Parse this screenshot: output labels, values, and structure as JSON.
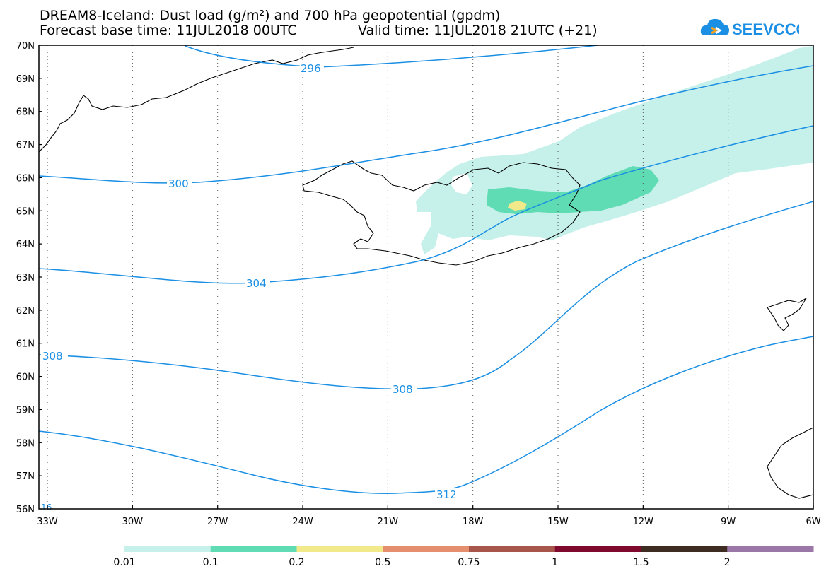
{
  "title": {
    "line1": "DREAM8-Iceland: Dust load (g/m²) and 700 hPa geopotential (gpdm)",
    "base_time": "Forecast base time: 11JUL2018 00UTC",
    "valid_time": "Valid time: 11JUL2018 21UTC (+21)"
  },
  "logo": {
    "text": "SEEVCCC",
    "icon": "cloud-logo-icon",
    "color": "#1a8fe3"
  },
  "map": {
    "lat_labels": [
      "70N",
      "69N",
      "68N",
      "67N",
      "66N",
      "65N",
      "64N",
      "63N",
      "62N",
      "61N",
      "60N",
      "59N",
      "58N",
      "57N",
      "56N"
    ],
    "lon_labels": [
      "33W",
      "30W",
      "27W",
      "24W",
      "21W",
      "18W",
      "15W",
      "12W",
      "9W",
      "6W"
    ],
    "contour_color": "#1a8fe3",
    "contour_labels": [
      "296",
      "300",
      "304",
      "308",
      "308",
      "312",
      "16"
    ]
  },
  "colorbar": {
    "labels": [
      "0.01",
      "0.1",
      "0.2",
      "0.5",
      "0.75",
      "1",
      "1.5",
      "2"
    ],
    "colors": [
      "#c6f0ea",
      "#5fdcb3",
      "#f2e98a",
      "#e58f6e",
      "#a8554c",
      "#800a2e",
      "#3e2c22",
      "#9a77a7"
    ]
  }
}
